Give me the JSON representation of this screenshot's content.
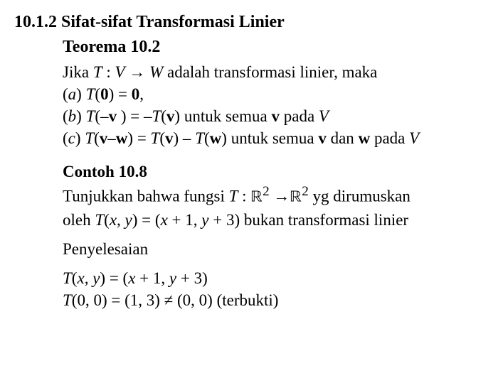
{
  "doc": {
    "text_color": "#000000",
    "background_color": "#ffffff",
    "font_family": "Times New Roman",
    "section_number": "10.1.2",
    "section_title": "Sifat-sifat Transformasi Linier",
    "theorem_label": "Teorema 10.2",
    "intro_1": "Jika ",
    "intro_T": "T",
    "intro_colon": " : ",
    "intro_V": "V",
    "intro_arrow": " → ",
    "intro_W": "W",
    "intro_2": " adalah transformasi linier, maka",
    "a_label": "(",
    "a_letter": "a",
    "a_close": ")  ",
    "a_T": "T",
    "a_open": "(",
    "a_zero1": "0",
    "a_mid": ") = ",
    "a_zero2": "0",
    "a_end": ",",
    "b_label": "(",
    "b_letter": "b",
    "b_close": ")  ",
    "b_T1": "T",
    "b_open1": "(–",
    "b_v1": "v",
    "b_close1": " ) = –",
    "b_T2": "T",
    "b_open2": "(",
    "b_v2": "v",
    "b_close2": ") untuk semua ",
    "b_v3": "v",
    "b_tail": " pada ",
    "b_V": "V",
    "c_label": "(",
    "c_letter": "c",
    "c_close": ") ",
    "c_T1": "T",
    "c_open1": "(",
    "c_v1": "v",
    "c_dash": "–",
    "c_w1": "w",
    "c_close1": ") = ",
    "c_T2": "T",
    "c_open2": "(",
    "c_v2": "v",
    "c_close2": ") – ",
    "c_T3": "T",
    "c_open3": "(",
    "c_w2": "w",
    "c_close3": ") untuk semua ",
    "c_v3": "v",
    "c_and": " dan ",
    "c_w3": "w",
    "c_tail": " pada ",
    "c_V": "V",
    "example_label": "Contoh 10.8",
    "ex_1a": "Tunjukkan bahwa fungsi ",
    "ex_T": "T",
    "ex_colon": " : ",
    "ex_R1": "ℝ",
    "ex_sup2a": "2",
    "ex_arrow": " →",
    "ex_R2": "ℝ",
    "ex_sup2b": "2",
    "ex_1b": "  yg dirumuskan",
    "ex_2a": "oleh ",
    "ex_T2": "T",
    "ex_args": "(",
    "ex_x": "x",
    "ex_comma": ", ",
    "ex_y": "y",
    "ex_eq": ") = (",
    "ex_x2": "x",
    "ex_plus1": " + 1, ",
    "ex_y2": "y",
    "ex_plus3": " + 3) bukan transformasi linier",
    "solution_label": "Penyelesaian",
    "s1_T": "T",
    "s1_open": "(",
    "s1_x": "x",
    "s1_comma": ", ",
    "s1_y": "y",
    "s1_eq": ") = (",
    "s1_x2": "x",
    "s1_p1": " + 1, ",
    "s1_y2": "y",
    "s1_p3": " + 3)",
    "s2_T": "T",
    "s2_args": "(0, 0) = (1, 3) ≠ (0, 0)    (terbukti)"
  }
}
